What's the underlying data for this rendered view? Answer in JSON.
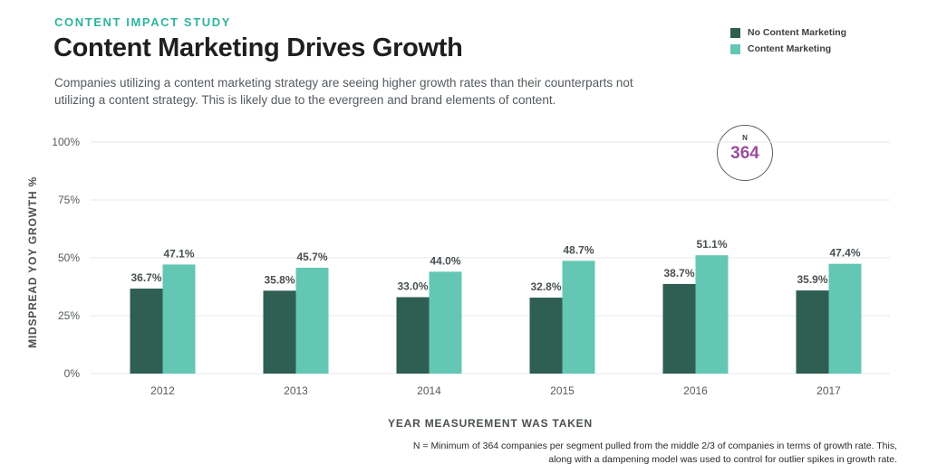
{
  "header": {
    "kicker": "CONTENT IMPACT STUDY",
    "title": "Content Marketing Drives Growth",
    "subtitle": "Companies utilizing a content marketing strategy are seeing higher growth rates than their counterparts not utilizing a content strategy. This is likely due to the evergreen and brand elements of content."
  },
  "badge": {
    "label": "N",
    "value": "364"
  },
  "footnote": "N = Minimum of 364 companies per segment pulled from the middle 2/3 of companies in terms of growth rate. This, along with a dampening model was used to control for outlier spikes in growth rate.",
  "colors": {
    "no_content": "#2f5e52",
    "content": "#63c7b3",
    "grid": "#e6e8ea",
    "tick": "#55595c",
    "label": "#4a4f52",
    "accent": "#9b4e9b"
  },
  "chart_data": {
    "type": "bar",
    "title": "Content Marketing Drives Growth",
    "xlabel": "YEAR MEASUREMENT WAS TAKEN",
    "ylabel": "MIDSPREAD YOY GROWTH %",
    "ylim": [
      0,
      100
    ],
    "yticks": [
      0,
      25,
      50,
      75,
      100
    ],
    "ytick_labels": [
      "0%",
      "25%",
      "50%",
      "75%",
      "100%"
    ],
    "categories": [
      "2012",
      "2013",
      "2014",
      "2015",
      "2016",
      "2017"
    ],
    "series": [
      {
        "name": "No Content Marketing",
        "values": [
          36.7,
          35.8,
          33.0,
          32.8,
          38.7,
          35.9
        ],
        "labels": [
          "36.7%",
          "35.8%",
          "33.0%",
          "32.8%",
          "38.7%",
          "35.9%"
        ]
      },
      {
        "name": "Content Marketing",
        "values": [
          47.1,
          45.7,
          44.0,
          48.7,
          51.1,
          47.4
        ],
        "labels": [
          "47.1%",
          "45.7%",
          "44.0%",
          "48.7%",
          "51.1%",
          "47.4%"
        ]
      }
    ],
    "legend": "top-right",
    "grid": true
  }
}
